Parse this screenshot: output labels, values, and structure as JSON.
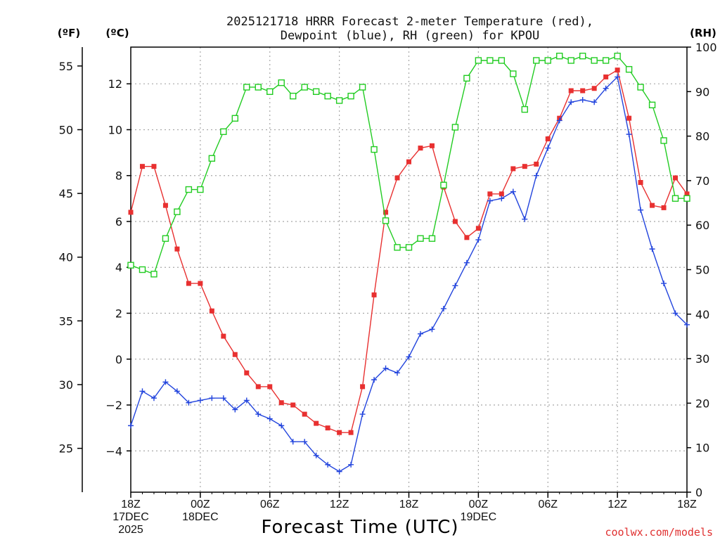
{
  "title_lines": [
    "2025121718 HRRR Forecast 2-meter Temperature (red),",
    "Dewpoint (blue), RH (green) for KPOU"
  ],
  "axis_units": {
    "fahrenheit": "(ºF)",
    "celsius": "(ºC)",
    "rh": "(RH)"
  },
  "xlabel": "Forecast Time (UTC)",
  "credit": "coolwx.com/models",
  "colors": {
    "temperature": "#e83030",
    "dewpoint": "#2244dd",
    "rh": "#22cc22",
    "grid": "#a8a8a8",
    "axis": "#000000"
  },
  "chart_data": {
    "type": "line",
    "title": "2025121718 HRRR Forecast 2-meter Temperature (red), Dewpoint (blue), RH (green) for KPOU",
    "xlabel": "Forecast Time (UTC)",
    "x_hours": [
      0,
      1,
      2,
      3,
      4,
      5,
      6,
      7,
      8,
      9,
      10,
      11,
      12,
      13,
      14,
      15,
      16,
      17,
      18,
      19,
      20,
      21,
      22,
      23,
      24,
      25,
      26,
      27,
      28,
      29,
      30,
      31,
      32,
      33,
      34,
      35,
      36,
      37,
      38,
      39,
      40,
      41,
      42,
      43,
      44,
      45,
      46,
      47,
      48
    ],
    "xlim": [
      0,
      48
    ],
    "x_ticks": [
      {
        "hour": 0,
        "lines": [
          "18Z",
          "17DEC",
          "2025"
        ]
      },
      {
        "hour": 6,
        "lines": [
          "00Z",
          "18DEC"
        ]
      },
      {
        "hour": 12,
        "lines": [
          "06Z"
        ]
      },
      {
        "hour": 18,
        "lines": [
          "12Z"
        ]
      },
      {
        "hour": 24,
        "lines": [
          "18Z"
        ]
      },
      {
        "hour": 30,
        "lines": [
          "00Z",
          "19DEC"
        ]
      },
      {
        "hour": 36,
        "lines": [
          "06Z"
        ]
      },
      {
        "hour": 42,
        "lines": [
          "12Z"
        ]
      },
      {
        "hour": 48,
        "lines": [
          "18Z"
        ]
      }
    ],
    "celsius_axis": {
      "range": [
        -5.8,
        13.6
      ],
      "ticks": [
        -4,
        -2,
        0,
        2,
        4,
        6,
        8,
        10,
        12
      ],
      "grid": true
    },
    "fahrenheit_axis": {
      "range": [
        21.56,
        56.48
      ],
      "ticks": [
        25,
        30,
        35,
        40,
        45,
        50,
        55
      ]
    },
    "rh_axis": {
      "range": [
        0,
        100
      ],
      "ticks": [
        0,
        10,
        20,
        30,
        40,
        50,
        60,
        70,
        80,
        90,
        100
      ]
    },
    "series": [
      {
        "name": "Temperature",
        "units": "C",
        "color": "#e83030",
        "marker": "filled-square",
        "values": [
          6.4,
          8.4,
          8.4,
          6.7,
          4.8,
          3.3,
          3.3,
          2.1,
          1.0,
          0.2,
          -0.6,
          -1.2,
          -1.2,
          -1.9,
          -2.0,
          -2.4,
          -2.8,
          -3.0,
          -3.2,
          -3.2,
          -1.2,
          2.8,
          6.4,
          7.9,
          8.6,
          9.2,
          9.3,
          7.5,
          6.0,
          5.3,
          5.7,
          7.2,
          7.2,
          8.3,
          8.4,
          8.5,
          9.6,
          10.5,
          11.7,
          11.7,
          11.8,
          12.3,
          12.6,
          10.5,
          7.7,
          6.7,
          6.6,
          7.9,
          7.2
        ]
      },
      {
        "name": "Dewpoint",
        "units": "C",
        "color": "#2244dd",
        "marker": "plus",
        "values": [
          -2.9,
          -1.4,
          -1.7,
          -1.0,
          -1.4,
          -1.9,
          -1.8,
          -1.7,
          -1.7,
          -2.2,
          -1.8,
          -2.4,
          -2.6,
          -2.9,
          -3.6,
          -3.6,
          -4.2,
          -4.6,
          -4.9,
          -4.6,
          -2.4,
          -0.9,
          -0.4,
          -0.6,
          0.1,
          1.1,
          1.3,
          2.2,
          3.2,
          4.2,
          5.2,
          6.9,
          7.0,
          7.3,
          6.1,
          8.0,
          9.2,
          10.4,
          11.2,
          11.3,
          11.2,
          11.8,
          12.3,
          9.8,
          6.5,
          4.8,
          3.3,
          2.0,
          1.5
        ]
      },
      {
        "name": "RH",
        "units": "%",
        "color": "#22cc22",
        "marker": "open-square",
        "axis": "rh",
        "values": [
          51,
          50,
          49,
          57,
          63,
          68,
          68,
          75,
          81,
          84,
          91,
          91,
          90,
          92,
          89,
          91,
          90,
          89,
          88,
          89,
          91,
          77,
          61,
          55,
          55,
          57,
          57,
          69,
          82,
          93,
          97,
          97,
          97,
          94,
          86,
          97,
          97,
          98,
          97,
          98,
          97,
          97,
          98,
          95,
          91,
          87,
          79,
          66,
          66
        ]
      }
    ]
  }
}
